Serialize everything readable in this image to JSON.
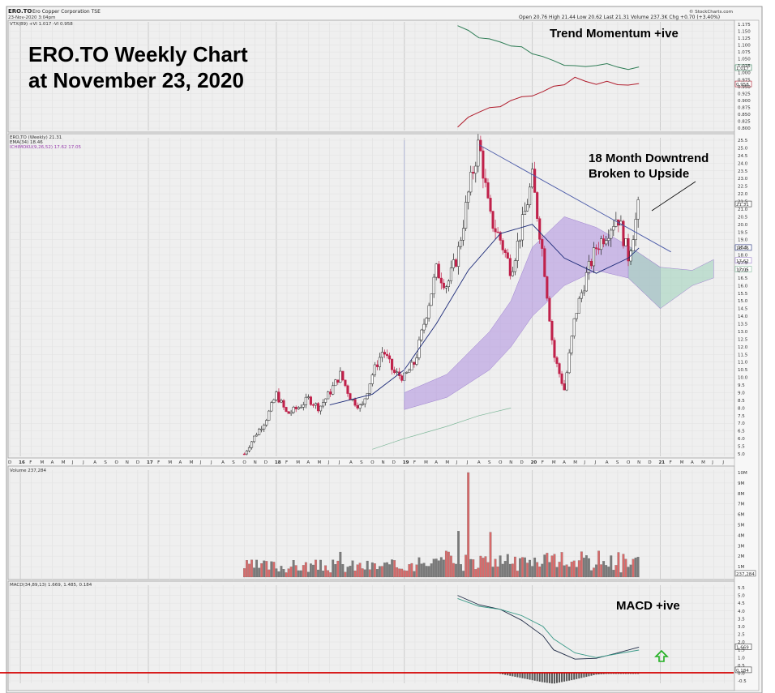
{
  "header": {
    "symbol": "ERO.TO",
    "company": "Ero Copper Corporation  TSE",
    "datetime": "23-Nov-2020 3:04pm",
    "brand": "© StockCharts.com",
    "quote": "Open 20.76  High 21.44  Low 20.62  Last 21.31  Volume 237.3K  Chg +0.70 (+3.40%)"
  },
  "titles": {
    "line1": "ERO.TO Weekly Chart",
    "line2": "at November 23, 2020"
  },
  "annotations": {
    "trend_momentum": "Trend Momentum +ive",
    "downtrend_line1": "18 Month Downtrend",
    "downtrend_line2": "Broken to Upside",
    "macd": "MACD +ive"
  },
  "colors": {
    "up_candle": "#ffffff",
    "down_candle": "#c0214a",
    "ema": "#1c2a78",
    "cloud_bull": "#b79ce0",
    "cloud_bear": "#a8d4c0",
    "kst_green": "#2f7d56",
    "kst_red": "#b01c2c",
    "vol_up": "#7a7a7a",
    "vol_down": "#d86a6a",
    "macd_line": "#1e2a45",
    "signal_line": "#3a9a88",
    "zero_line": "#d40000",
    "trendline": "#4a5aa8",
    "arrow": "#20b020",
    "grid": "#d9d9d9"
  },
  "chart_data": [
    {
      "type": "line",
      "panel": "VTX (89)",
      "legend": "VTX(89) +VI 1.017  -VI 0.958",
      "series": [
        {
          "name": "+VI",
          "x": [
            "2019-06",
            "2019-07",
            "2019-08",
            "2019-09",
            "2019-10",
            "2019-11",
            "2019-12",
            "2020-01",
            "2020-02",
            "2020-03",
            "2020-04",
            "2020-05",
            "2020-06",
            "2020-07",
            "2020-08",
            "2020-09",
            "2020-10",
            "2020-11"
          ],
          "values": [
            1.17,
            1.15,
            1.13,
            1.12,
            1.11,
            1.1,
            1.09,
            1.07,
            1.06,
            1.04,
            1.03,
            1.025,
            1.02,
            1.03,
            1.03,
            1.02,
            1.015,
            1.017
          ]
        },
        {
          "name": "-VI",
          "x": [
            "2019-06",
            "2019-07",
            "2019-08",
            "2019-09",
            "2019-10",
            "2019-11",
            "2019-12",
            "2020-01",
            "2020-02",
            "2020-03",
            "2020-04",
            "2020-05",
            "2020-06",
            "2020-07",
            "2020-08",
            "2020-09",
            "2020-10",
            "2020-11"
          ],
          "values": [
            0.8,
            0.84,
            0.86,
            0.87,
            0.88,
            0.9,
            0.91,
            0.92,
            0.93,
            0.95,
            0.96,
            0.98,
            0.97,
            0.96,
            0.965,
            0.96,
            0.955,
            0.958
          ]
        }
      ],
      "ylim": [
        0.8,
        1.175
      ],
      "yticks": [
        "1.175",
        "1.150",
        "1.125",
        "1.100",
        "1.075",
        "1.050",
        "1.025",
        "1.000",
        "0.975",
        "0.950",
        "0.925",
        "0.900",
        "0.875",
        "0.850",
        "0.825",
        "0.800"
      ],
      "last_values": [
        "1.017",
        "0.958"
      ]
    },
    {
      "type": "candlestick",
      "panel": "price",
      "legend": [
        "ERO.TO (Weekly) 21.31",
        "EMA(34) 18.46",
        "ICHIMOKU(9,26,52) 17.62 17.05"
      ],
      "x_ticks": [
        "D",
        "16",
        "F",
        "M",
        "A",
        "M",
        "J",
        "J",
        "A",
        "S",
        "O",
        "N",
        "D",
        "17",
        "F",
        "M",
        "A",
        "M",
        "J",
        "J",
        "A",
        "S",
        "O",
        "N",
        "D",
        "18",
        "F",
        "M",
        "A",
        "M",
        "J",
        "J",
        "A",
        "S",
        "O",
        "N",
        "D",
        "19",
        "F",
        "M",
        "A",
        "M",
        "J",
        "J",
        "A",
        "S",
        "O",
        "N",
        "D",
        "20",
        "F",
        "M",
        "A",
        "M",
        "J",
        "J",
        "A",
        "S",
        "O",
        "N",
        "D",
        "21",
        "F",
        "M",
        "A",
        "M",
        "J",
        "J"
      ],
      "x_ticks_bold": [
        "16",
        "17",
        "18",
        "19",
        "20",
        "21"
      ],
      "ylim": [
        5.0,
        25.5
      ],
      "yticks": [
        "25.5",
        "25.0",
        "24.5",
        "24.0",
        "23.5",
        "23.0",
        "22.5",
        "22.0",
        "21.5",
        "21.0",
        "20.5",
        "20.0",
        "19.5",
        "19.0",
        "18.5",
        "18.0",
        "17.5",
        "17.0",
        "16.5",
        "16.0",
        "15.5",
        "15.0",
        "14.5",
        "14.0",
        "13.5",
        "13.0",
        "12.5",
        "12.0",
        "11.5",
        "11.0",
        "10.5",
        "10.0",
        "9.5",
        "9.0",
        "8.5",
        "8.0",
        "7.5",
        "7.0",
        "6.5",
        "6.0",
        "5.5",
        "5.0"
      ],
      "price_path": [
        [
          "2017-10",
          5.0
        ],
        [
          "2017-11",
          6.2
        ],
        [
          "2017-12",
          7.2
        ],
        [
          "2018-01",
          8.9
        ],
        [
          "2018-02",
          7.6
        ],
        [
          "2018-03",
          8.0
        ],
        [
          "2018-04",
          8.6
        ],
        [
          "2018-05",
          8.0
        ],
        [
          "2018-06",
          9.0
        ],
        [
          "2018-07",
          10.2
        ],
        [
          "2018-08",
          8.6
        ],
        [
          "2018-09",
          8.0
        ],
        [
          "2018-10",
          10.2
        ],
        [
          "2018-11",
          11.8
        ],
        [
          "2018-12",
          10.3
        ],
        [
          "2019-01",
          10.0
        ],
        [
          "2019-02",
          11.0
        ],
        [
          "2019-03",
          14.0
        ],
        [
          "2019-04",
          17.0
        ],
        [
          "2019-05",
          16.0
        ],
        [
          "2019-06",
          18.0
        ],
        [
          "2019-07",
          22.0
        ],
        [
          "2019-08",
          25.4
        ],
        [
          "2019-09",
          20.5
        ],
        [
          "2019-10",
          19.0
        ],
        [
          "2019-11",
          17.0
        ],
        [
          "2019-12",
          19.8
        ],
        [
          "2020-01",
          23.0
        ],
        [
          "2020-02",
          18.0
        ],
        [
          "2020-03",
          11.5
        ],
        [
          "2020-04",
          9.2
        ],
        [
          "2020-05",
          14.0
        ],
        [
          "2020-06",
          16.5
        ],
        [
          "2020-07",
          18.5
        ],
        [
          "2020-08",
          19.5
        ],
        [
          "2020-09",
          20.6
        ],
        [
          "2020-10",
          17.9
        ],
        [
          "2020-11",
          21.31
        ]
      ],
      "ema": [
        [
          "2018-06",
          8.2
        ],
        [
          "2018-10",
          8.9
        ],
        [
          "2019-01",
          10.5
        ],
        [
          "2019-04",
          13.5
        ],
        [
          "2019-07",
          17.0
        ],
        [
          "2019-10",
          19.4
        ],
        [
          "2020-01",
          20.0
        ],
        [
          "2020-04",
          17.8
        ],
        [
          "2020-07",
          16.8
        ],
        [
          "2020-10",
          17.8
        ],
        [
          "2020-11",
          18.46
        ]
      ],
      "ichimoku_cloud": [
        [
          "2019-01",
          7.9,
          9.0
        ],
        [
          "2019-05",
          8.7,
          10.2
        ],
        [
          "2019-09",
          10.5,
          13.0
        ],
        [
          "2019-11",
          12.0,
          15.0
        ],
        [
          "2020-01",
          14.0,
          18.5
        ],
        [
          "2020-04",
          16.0,
          20.5
        ],
        [
          "2020-07",
          17.0,
          19.8
        ],
        [
          "2020-10",
          16.5,
          18.6
        ],
        [
          "2021-01",
          14.5,
          17.2
        ],
        [
          "2021-04",
          16.0,
          17.0
        ],
        [
          "2021-06",
          16.5,
          17.7
        ]
      ],
      "trendline": {
        "from": [
          "2019-08",
          25.2
        ],
        "to": [
          "2021-02",
          18.2
        ]
      },
      "last_labels": [
        "21.31",
        "18.46",
        "17.62",
        "17.05"
      ]
    },
    {
      "type": "bar",
      "panel": "volume",
      "legend": "Volume 237,284",
      "yticks": [
        "10M",
        "9M",
        "8M",
        "7M",
        "6M",
        "5M",
        "4M",
        "3M",
        "2M",
        "1M"
      ],
      "ylim": [
        0,
        10
      ],
      "notable_bars_millions": [
        [
          "2019-07",
          10.0
        ],
        [
          "2019-06",
          4.4
        ],
        [
          "2019-09",
          4.3
        ],
        [
          "2020-03",
          2.2
        ],
        [
          "2018-07",
          2.4
        ]
      ],
      "last_value": "237,284"
    },
    {
      "type": "line",
      "panel": "MACD",
      "legend": "MACD(34,89,13) 1.669, 1.485, 0.184",
      "series": [
        {
          "name": "MACD",
          "x": [
            "2019-06",
            "2019-08",
            "2019-10",
            "2019-12",
            "2020-02",
            "2020-03",
            "2020-05",
            "2020-07",
            "2020-09",
            "2020-11"
          ],
          "values": [
            5.0,
            4.4,
            4.1,
            3.4,
            2.4,
            1.5,
            0.9,
            0.95,
            1.3,
            1.669
          ]
        },
        {
          "name": "Signal",
          "x": [
            "2019-06",
            "2019-08",
            "2019-10",
            "2019-12",
            "2020-02",
            "2020-03",
            "2020-05",
            "2020-07",
            "2020-09",
            "2020-11"
          ],
          "values": [
            4.8,
            4.3,
            4.1,
            3.7,
            3.0,
            2.2,
            1.3,
            1.0,
            1.25,
            1.485
          ]
        }
      ],
      "ylim": [
        -0.5,
        5.5
      ],
      "yticks": [
        "5.5",
        "5.0",
        "4.5",
        "4.0",
        "3.5",
        "3.0",
        "2.5",
        "2.0",
        "1.5",
        "1.0",
        "0.5",
        "0.0",
        "-0.5"
      ],
      "last_values": [
        "1.669",
        "0.184"
      ]
    }
  ]
}
